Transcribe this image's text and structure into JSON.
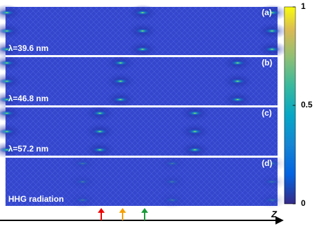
{
  "panels": [
    {
      "tag": "(a)",
      "label": "λ=39.6 nm"
    },
    {
      "tag": "(b)",
      "label": "λ=46.8 nm"
    },
    {
      "tag": "(c)",
      "label": "λ=57.2 nm"
    },
    {
      "tag": "(d)",
      "label": "HHG radiation"
    }
  ],
  "colorbar": {
    "lim": [
      0,
      1
    ],
    "ticks": [
      0,
      0.5,
      1
    ]
  },
  "axis_label": "Z"
}
